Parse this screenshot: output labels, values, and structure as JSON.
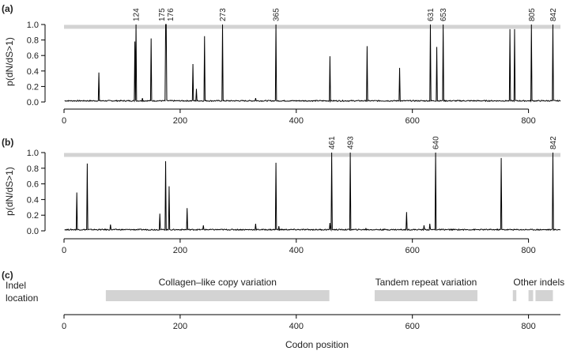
{
  "chart_data": [
    {
      "type": "line",
      "panel_label": "(a)",
      "ylabel": "p(dN/dS>1)",
      "xlim": [
        0,
        855
      ],
      "ylim": [
        0,
        1.0
      ],
      "x_ticks": [
        0,
        200,
        400,
        600,
        800
      ],
      "y_ticks": [
        "0.0",
        "0.2",
        "0.4",
        "0.6",
        "0.8",
        "1.0"
      ],
      "threshold": 0.97,
      "series": [
        {
          "peaks": [
            {
              "x": 60,
              "y": 0.38
            },
            {
              "x": 122,
              "y": 0.78
            },
            {
              "x": 124,
              "y": 1.0
            },
            {
              "x": 135,
              "y": 0.05
            },
            {
              "x": 150,
              "y": 0.82
            },
            {
              "x": 175,
              "y": 1.0
            },
            {
              "x": 176,
              "y": 1.0
            },
            {
              "x": 222,
              "y": 0.49
            },
            {
              "x": 228,
              "y": 0.17
            },
            {
              "x": 242,
              "y": 0.85
            },
            {
              "x": 273,
              "y": 1.0
            },
            {
              "x": 330,
              "y": 0.05
            },
            {
              "x": 365,
              "y": 1.0
            },
            {
              "x": 458,
              "y": 0.59
            },
            {
              "x": 522,
              "y": 0.72
            },
            {
              "x": 578,
              "y": 0.44
            },
            {
              "x": 631,
              "y": 1.0
            },
            {
              "x": 642,
              "y": 0.71
            },
            {
              "x": 653,
              "y": 1.0
            },
            {
              "x": 768,
              "y": 0.94
            },
            {
              "x": 776,
              "y": 0.94
            },
            {
              "x": 805,
              "y": 1.0
            },
            {
              "x": 842,
              "y": 1.0
            }
          ]
        }
      ],
      "annotations": [
        "124",
        "175",
        "176",
        "273",
        "365",
        "631",
        "653",
        "805",
        "842"
      ]
    },
    {
      "type": "line",
      "panel_label": "(b)",
      "ylabel": "p(dN/dS>1)",
      "xlim": [
        0,
        855
      ],
      "ylim": [
        0,
        1.0
      ],
      "x_ticks": [
        0,
        200,
        400,
        600,
        800
      ],
      "y_ticks": [
        "0.0",
        "0.2",
        "0.4",
        "0.6",
        "0.8",
        "1.0"
      ],
      "threshold": 0.97,
      "series": [
        {
          "peaks": [
            {
              "x": 22,
              "y": 0.49
            },
            {
              "x": 40,
              "y": 0.86
            },
            {
              "x": 80,
              "y": 0.08
            },
            {
              "x": 165,
              "y": 0.22
            },
            {
              "x": 175,
              "y": 0.89
            },
            {
              "x": 181,
              "y": 0.57
            },
            {
              "x": 212,
              "y": 0.29
            },
            {
              "x": 240,
              "y": 0.07
            },
            {
              "x": 330,
              "y": 0.09
            },
            {
              "x": 365,
              "y": 0.87
            },
            {
              "x": 370,
              "y": 0.06
            },
            {
              "x": 458,
              "y": 0.1
            },
            {
              "x": 461,
              "y": 1.0
            },
            {
              "x": 493,
              "y": 1.0
            },
            {
              "x": 520,
              "y": 0.03
            },
            {
              "x": 590,
              "y": 0.24
            },
            {
              "x": 620,
              "y": 0.07
            },
            {
              "x": 630,
              "y": 0.09
            },
            {
              "x": 640,
              "y": 1.0
            },
            {
              "x": 753,
              "y": 0.93
            },
            {
              "x": 842,
              "y": 1.0
            }
          ]
        }
      ],
      "annotations": [
        "461",
        "493",
        "640",
        "842"
      ]
    },
    {
      "type": "bar",
      "panel_label": "(c)",
      "ylabel": "Indel location",
      "xlabel": "Codon position",
      "xlim": [
        0,
        855
      ],
      "x_ticks": [
        0,
        200,
        400,
        600,
        800
      ],
      "regions": [
        {
          "label": "Collagen–like copy variation",
          "start": 72,
          "end": 457
        },
        {
          "label": "Tandem repeat variation",
          "start": 535,
          "end": 712
        },
        {
          "label": "Other indels",
          "start": 773,
          "end": 779
        },
        {
          "label": "",
          "start": 800,
          "end": 808
        },
        {
          "label": "",
          "start": 812,
          "end": 842
        }
      ]
    }
  ]
}
